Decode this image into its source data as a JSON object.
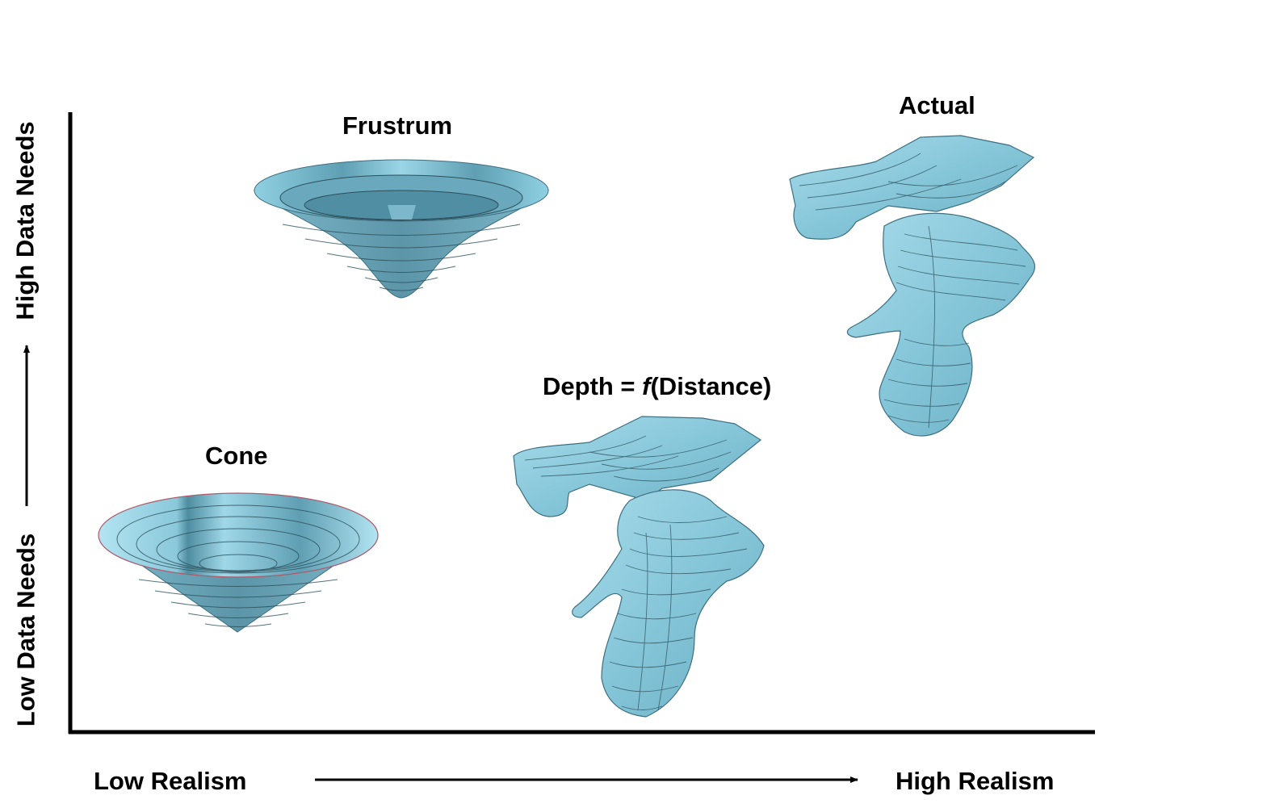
{
  "shapes": {
    "frustrum": "Frustrum",
    "actual": "Actual",
    "cone": "Cone",
    "depth_prefix": "Depth = ",
    "depth_func": "f",
    "depth_suffix": "(Distance)"
  },
  "axes": {
    "x_low": "Low Realism",
    "x_high": "High Realism",
    "y_low": "Low Data Needs",
    "y_high": "High Data Needs"
  },
  "colors": {
    "surface": "#8ccde0",
    "surface_light": "#a9dcea",
    "surface_dark": "#4f8ea3",
    "contour": "#2d4f5a",
    "axis": "#000000"
  }
}
